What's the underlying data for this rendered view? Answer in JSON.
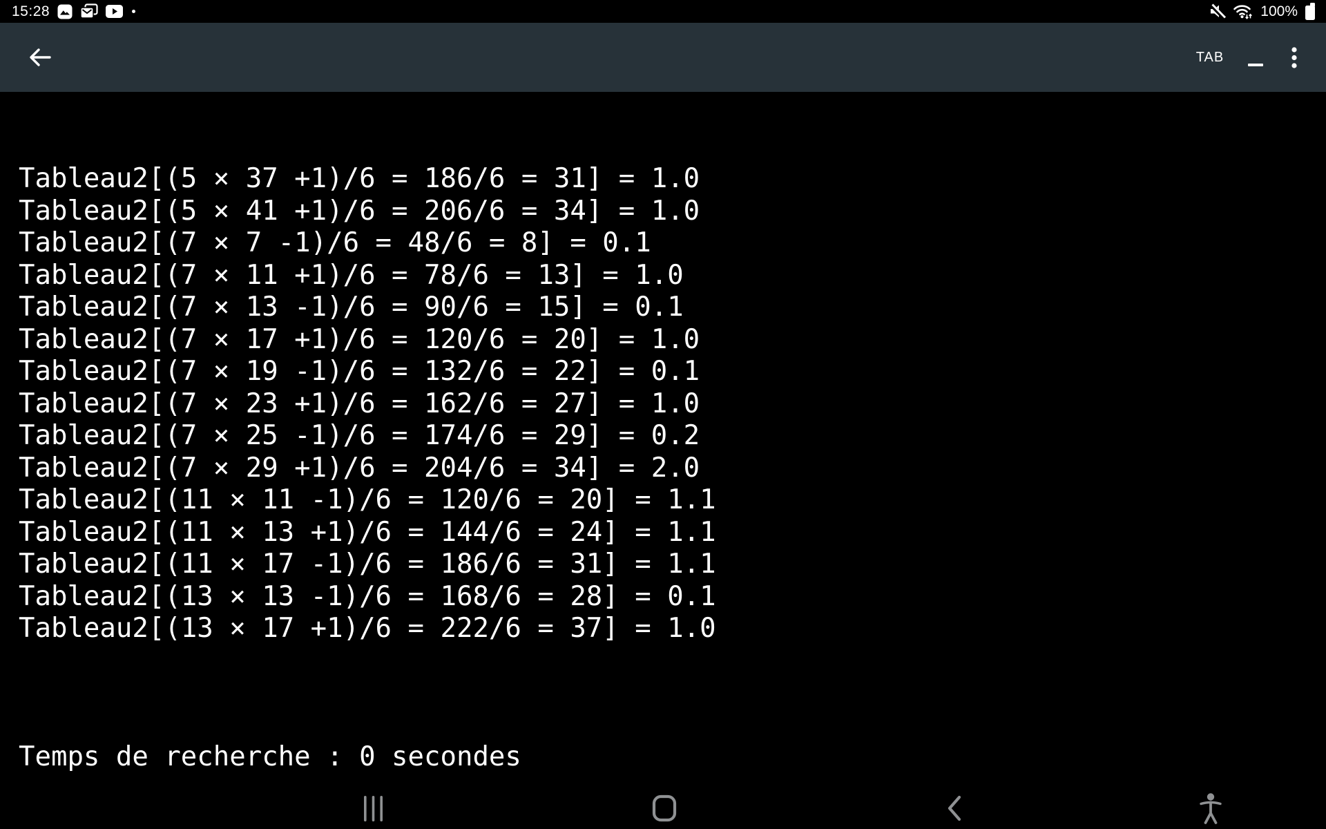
{
  "colors": {
    "background": "#000000",
    "toolbar_bg": "#273239",
    "text": "#ffffff",
    "nav_icon": "#8f9193",
    "status_icon": "#ffffff"
  },
  "status_bar": {
    "time": "15:28",
    "battery_percent": "100%",
    "left_icons": [
      "gallery-icon",
      "email-icon",
      "youtube-icon",
      "notification-dot"
    ],
    "right_icons": [
      "mute-icon",
      "wifi-traffic-icon",
      "battery-icon"
    ]
  },
  "toolbar": {
    "back_icon": "arrow-left-icon",
    "tab_label": "TAB",
    "minimize_icon": "underscore-icon",
    "menu_icon": "kebab-menu-icon"
  },
  "console": {
    "lines": [
      "Tableau2[(5 × 37 +1)/6 = 186/6 = 31] = 1.0",
      "Tableau2[(5 × 41 +1)/6 = 206/6 = 34] = 1.0",
      "Tableau2[(7 × 7 -1)/6 = 48/6 = 8] = 0.1",
      "Tableau2[(7 × 11 +1)/6 = 78/6 = 13] = 1.0",
      "Tableau2[(7 × 13 -1)/6 = 90/6 = 15] = 0.1",
      "Tableau2[(7 × 17 +1)/6 = 120/6 = 20] = 1.0",
      "Tableau2[(7 × 19 -1)/6 = 132/6 = 22] = 0.1",
      "Tableau2[(7 × 23 +1)/6 = 162/6 = 27] = 1.0",
      "Tableau2[(7 × 25 -1)/6 = 174/6 = 29] = 0.2",
      "Tableau2[(7 × 29 +1)/6 = 204/6 = 34] = 2.0",
      "Tableau2[(11 × 11 -1)/6 = 120/6 = 20] = 1.1",
      "Tableau2[(11 × 13 +1)/6 = 144/6 = 24] = 1.1",
      "Tableau2[(11 × 17 -1)/6 = 186/6 = 31] = 1.1",
      "Tableau2[(13 × 13 -1)/6 = 168/6 = 28] = 0.1",
      "Tableau2[(13 × 17 +1)/6 = 222/6 = 37] = 1.0"
    ],
    "footer": "Temps de recherche : 0 secondes"
  },
  "nav_bar": {
    "icons": [
      "recents-icon",
      "home-icon",
      "back-icon",
      "accessibility-icon"
    ]
  }
}
